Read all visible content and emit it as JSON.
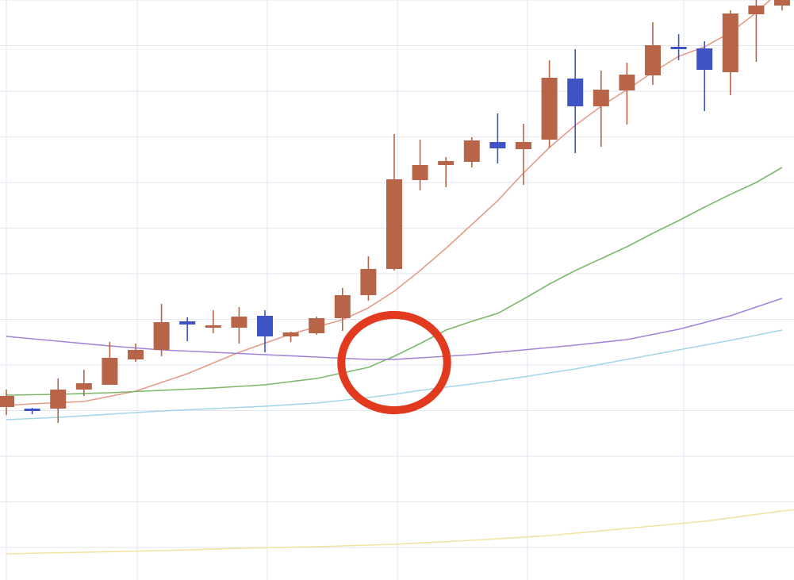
{
  "chart_data": {
    "type": "candlestick",
    "xlim": [
      0,
      31
    ],
    "ylim": [
      0,
      731
    ],
    "grid": true,
    "colors": {
      "up": "#b86448",
      "down": "#3f54c4",
      "grid": "#e3e6ef",
      "highlight": "#e23a1f"
    },
    "candles": [
      {
        "x": 0,
        "open": 218,
        "close": 232,
        "high": 240,
        "low": 208
      },
      {
        "x": 1,
        "open": 216,
        "close": 213,
        "high": 217,
        "low": 209
      },
      {
        "x": 2,
        "open": 216,
        "close": 240,
        "high": 254,
        "low": 198
      },
      {
        "x": 3,
        "open": 240,
        "close": 248,
        "high": 265,
        "low": 232
      },
      {
        "x": 4,
        "open": 246,
        "close": 280,
        "high": 300,
        "low": 246
      },
      {
        "x": 5,
        "open": 278,
        "close": 290,
        "high": 298,
        "low": 275
      },
      {
        "x": 6,
        "open": 290,
        "close": 325,
        "high": 348,
        "low": 282
      },
      {
        "x": 7,
        "open": 326,
        "close": 322,
        "high": 331,
        "low": 301
      },
      {
        "x": 8,
        "open": 319,
        "close": 321,
        "high": 340,
        "low": 311
      },
      {
        "x": 9,
        "open": 318,
        "close": 332,
        "high": 344,
        "low": 298
      },
      {
        "x": 10,
        "open": 333,
        "close": 307,
        "high": 340,
        "low": 287
      },
      {
        "x": 11,
        "open": 307,
        "close": 312,
        "high": 313,
        "low": 300
      },
      {
        "x": 12,
        "open": 311,
        "close": 330,
        "high": 332,
        "low": 309
      },
      {
        "x": 13,
        "open": 330,
        "close": 359,
        "high": 368,
        "low": 314
      },
      {
        "x": 14,
        "open": 359,
        "close": 392,
        "high": 408,
        "low": 352
      },
      {
        "x": 15,
        "open": 392,
        "close": 505,
        "high": 562,
        "low": 390
      },
      {
        "x": 16,
        "open": 504,
        "close": 523,
        "high": 555,
        "low": 491
      },
      {
        "x": 17,
        "open": 523,
        "close": 528,
        "high": 533,
        "low": 495
      },
      {
        "x": 18,
        "open": 527,
        "close": 554,
        "high": 558,
        "low": 520
      },
      {
        "x": 19,
        "open": 552,
        "close": 544,
        "high": 588,
        "low": 525
      },
      {
        "x": 20,
        "open": 543,
        "close": 552,
        "high": 575,
        "low": 498
      },
      {
        "x": 21,
        "open": 555,
        "close": 633,
        "high": 655,
        "low": 545
      },
      {
        "x": 22,
        "open": 632,
        "close": 597,
        "high": 669,
        "low": 538
      },
      {
        "x": 23,
        "open": 597,
        "close": 618,
        "high": 642,
        "low": 546
      },
      {
        "x": 24,
        "open": 617,
        "close": 637,
        "high": 652,
        "low": 574
      },
      {
        "x": 25,
        "open": 636,
        "close": 674,
        "high": 703,
        "low": 624
      },
      {
        "x": 26,
        "open": 672,
        "close": 670,
        "high": 688,
        "low": 655
      },
      {
        "x": 27,
        "open": 670,
        "close": 643,
        "high": 679,
        "low": 591
      },
      {
        "x": 28,
        "open": 640,
        "close": 714,
        "high": 718,
        "low": 611
      },
      {
        "x": 29,
        "open": 713,
        "close": 724,
        "high": 745,
        "low": 653
      },
      {
        "x": 30,
        "open": 724,
        "close": 734,
        "high": 750,
        "low": 718
      }
    ],
    "series": [
      {
        "color": "#e59c8a",
        "points": [
          [
            0,
            220
          ],
          [
            1,
            222
          ],
          [
            3,
            225
          ],
          [
            5,
            238
          ],
          [
            7,
            260
          ],
          [
            9,
            287
          ],
          [
            11,
            310
          ],
          [
            13,
            328
          ],
          [
            14,
            343
          ],
          [
            15,
            364
          ],
          [
            16,
            390
          ],
          [
            17,
            418
          ],
          [
            18,
            448
          ],
          [
            19,
            478
          ],
          [
            20,
            513
          ],
          [
            21,
            545
          ],
          [
            22,
            573
          ],
          [
            23,
            597
          ],
          [
            24,
            618
          ],
          [
            25,
            640
          ],
          [
            26,
            660
          ],
          [
            27,
            672
          ],
          [
            28,
            690
          ],
          [
            29,
            715
          ],
          [
            30,
            745
          ],
          [
            31,
            760
          ]
        ]
      },
      {
        "color": "#7fb86c",
        "points": [
          [
            0,
            233
          ],
          [
            2,
            234
          ],
          [
            4,
            236
          ],
          [
            6,
            239
          ],
          [
            8,
            242
          ],
          [
            10,
            246
          ],
          [
            12,
            254
          ],
          [
            14,
            268
          ],
          [
            15,
            282
          ],
          [
            16,
            298
          ],
          [
            17,
            315
          ],
          [
            18,
            326
          ],
          [
            19,
            336
          ],
          [
            20,
            354
          ],
          [
            21,
            373
          ],
          [
            22,
            390
          ],
          [
            23,
            405
          ],
          [
            24,
            420
          ],
          [
            25,
            437
          ],
          [
            26,
            453
          ],
          [
            27,
            470
          ],
          [
            28,
            486
          ],
          [
            29,
            501
          ],
          [
            30,
            520
          ]
        ]
      },
      {
        "color": "#a285d8",
        "points": [
          [
            0,
            307
          ],
          [
            2,
            301
          ],
          [
            4,
            295
          ],
          [
            6,
            290
          ],
          [
            8,
            287
          ],
          [
            10,
            284
          ],
          [
            12,
            281
          ],
          [
            14,
            278
          ],
          [
            15,
            278
          ],
          [
            16,
            280
          ],
          [
            18,
            284
          ],
          [
            20,
            290
          ],
          [
            22,
            296
          ],
          [
            24,
            303
          ],
          [
            26,
            316
          ],
          [
            28,
            333
          ],
          [
            30,
            355
          ]
        ]
      },
      {
        "color": "#a4d6e8",
        "points": [
          [
            0,
            202
          ],
          [
            2,
            205
          ],
          [
            4,
            209
          ],
          [
            6,
            213
          ],
          [
            8,
            216
          ],
          [
            10,
            219
          ],
          [
            12,
            223
          ],
          [
            14,
            230
          ],
          [
            15,
            234
          ],
          [
            16,
            239
          ],
          [
            18,
            247
          ],
          [
            20,
            256
          ],
          [
            22,
            266
          ],
          [
            24,
            278
          ],
          [
            26,
            290
          ],
          [
            28,
            302
          ],
          [
            30,
            315
          ]
        ]
      },
      {
        "color": "#f1e3a0",
        "points": [
          [
            0,
            33
          ],
          [
            3,
            35
          ],
          [
            6,
            37
          ],
          [
            9,
            40
          ],
          [
            12,
            42
          ],
          [
            15,
            45
          ],
          [
            18,
            50
          ],
          [
            21,
            56
          ],
          [
            24,
            65
          ],
          [
            27,
            74
          ],
          [
            30,
            87
          ],
          [
            31,
            90
          ]
        ]
      }
    ],
    "annotation": {
      "shape": "circle",
      "x": 15,
      "y": 274,
      "r": 3.5
    }
  }
}
